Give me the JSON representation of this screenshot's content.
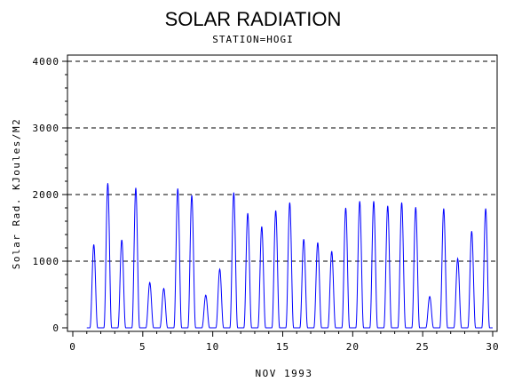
{
  "chart_data": {
    "type": "line",
    "title": "SOLAR RADIATION",
    "subtitle": "STATION=HOGI",
    "xlabel": "NOV 1993",
    "ylabel": "Solar Rad. KJoules/M2",
    "xlim": [
      0,
      30
    ],
    "ylim": [
      0,
      4000
    ],
    "x_ticks": [
      0,
      5,
      10,
      15,
      20,
      25,
      30
    ],
    "y_ticks": [
      0,
      1000,
      2000,
      3000,
      4000
    ],
    "y_tick_labels": [
      "0",
      "1000",
      "2000",
      "3000",
      "4000"
    ],
    "grid": true,
    "series_color": "#0000ff",
    "daily_peaks": [
      {
        "day": 1,
        "peak": 1250
      },
      {
        "day": 2,
        "peak": 2170
      },
      {
        "day": 3,
        "peak": 1320
      },
      {
        "day": 4,
        "peak": 2100
      },
      {
        "day": 5,
        "peak": 680
      },
      {
        "day": 6,
        "peak": 590
      },
      {
        "day": 7,
        "peak": 2090
      },
      {
        "day": 8,
        "peak": 1990
      },
      {
        "day": 9,
        "peak": 490
      },
      {
        "day": 10,
        "peak": 880
      },
      {
        "day": 11,
        "peak": 2030
      },
      {
        "day": 12,
        "peak": 1720
      },
      {
        "day": 13,
        "peak": 1520
      },
      {
        "day": 14,
        "peak": 1760
      },
      {
        "day": 15,
        "peak": 1880
      },
      {
        "day": 16,
        "peak": 1330
      },
      {
        "day": 17,
        "peak": 1280
      },
      {
        "day": 18,
        "peak": 1150
      },
      {
        "day": 19,
        "peak": 1800
      },
      {
        "day": 20,
        "peak": 1900
      },
      {
        "day": 21,
        "peak": 1900
      },
      {
        "day": 22,
        "peak": 1830
      },
      {
        "day": 23,
        "peak": 1880
      },
      {
        "day": 24,
        "peak": 1810
      },
      {
        "day": 25,
        "peak": 470
      },
      {
        "day": 26,
        "peak": 1790
      },
      {
        "day": 27,
        "peak": 1040
      },
      {
        "day": 28,
        "peak": 1450
      },
      {
        "day": 29,
        "peak": 1790
      }
    ]
  }
}
